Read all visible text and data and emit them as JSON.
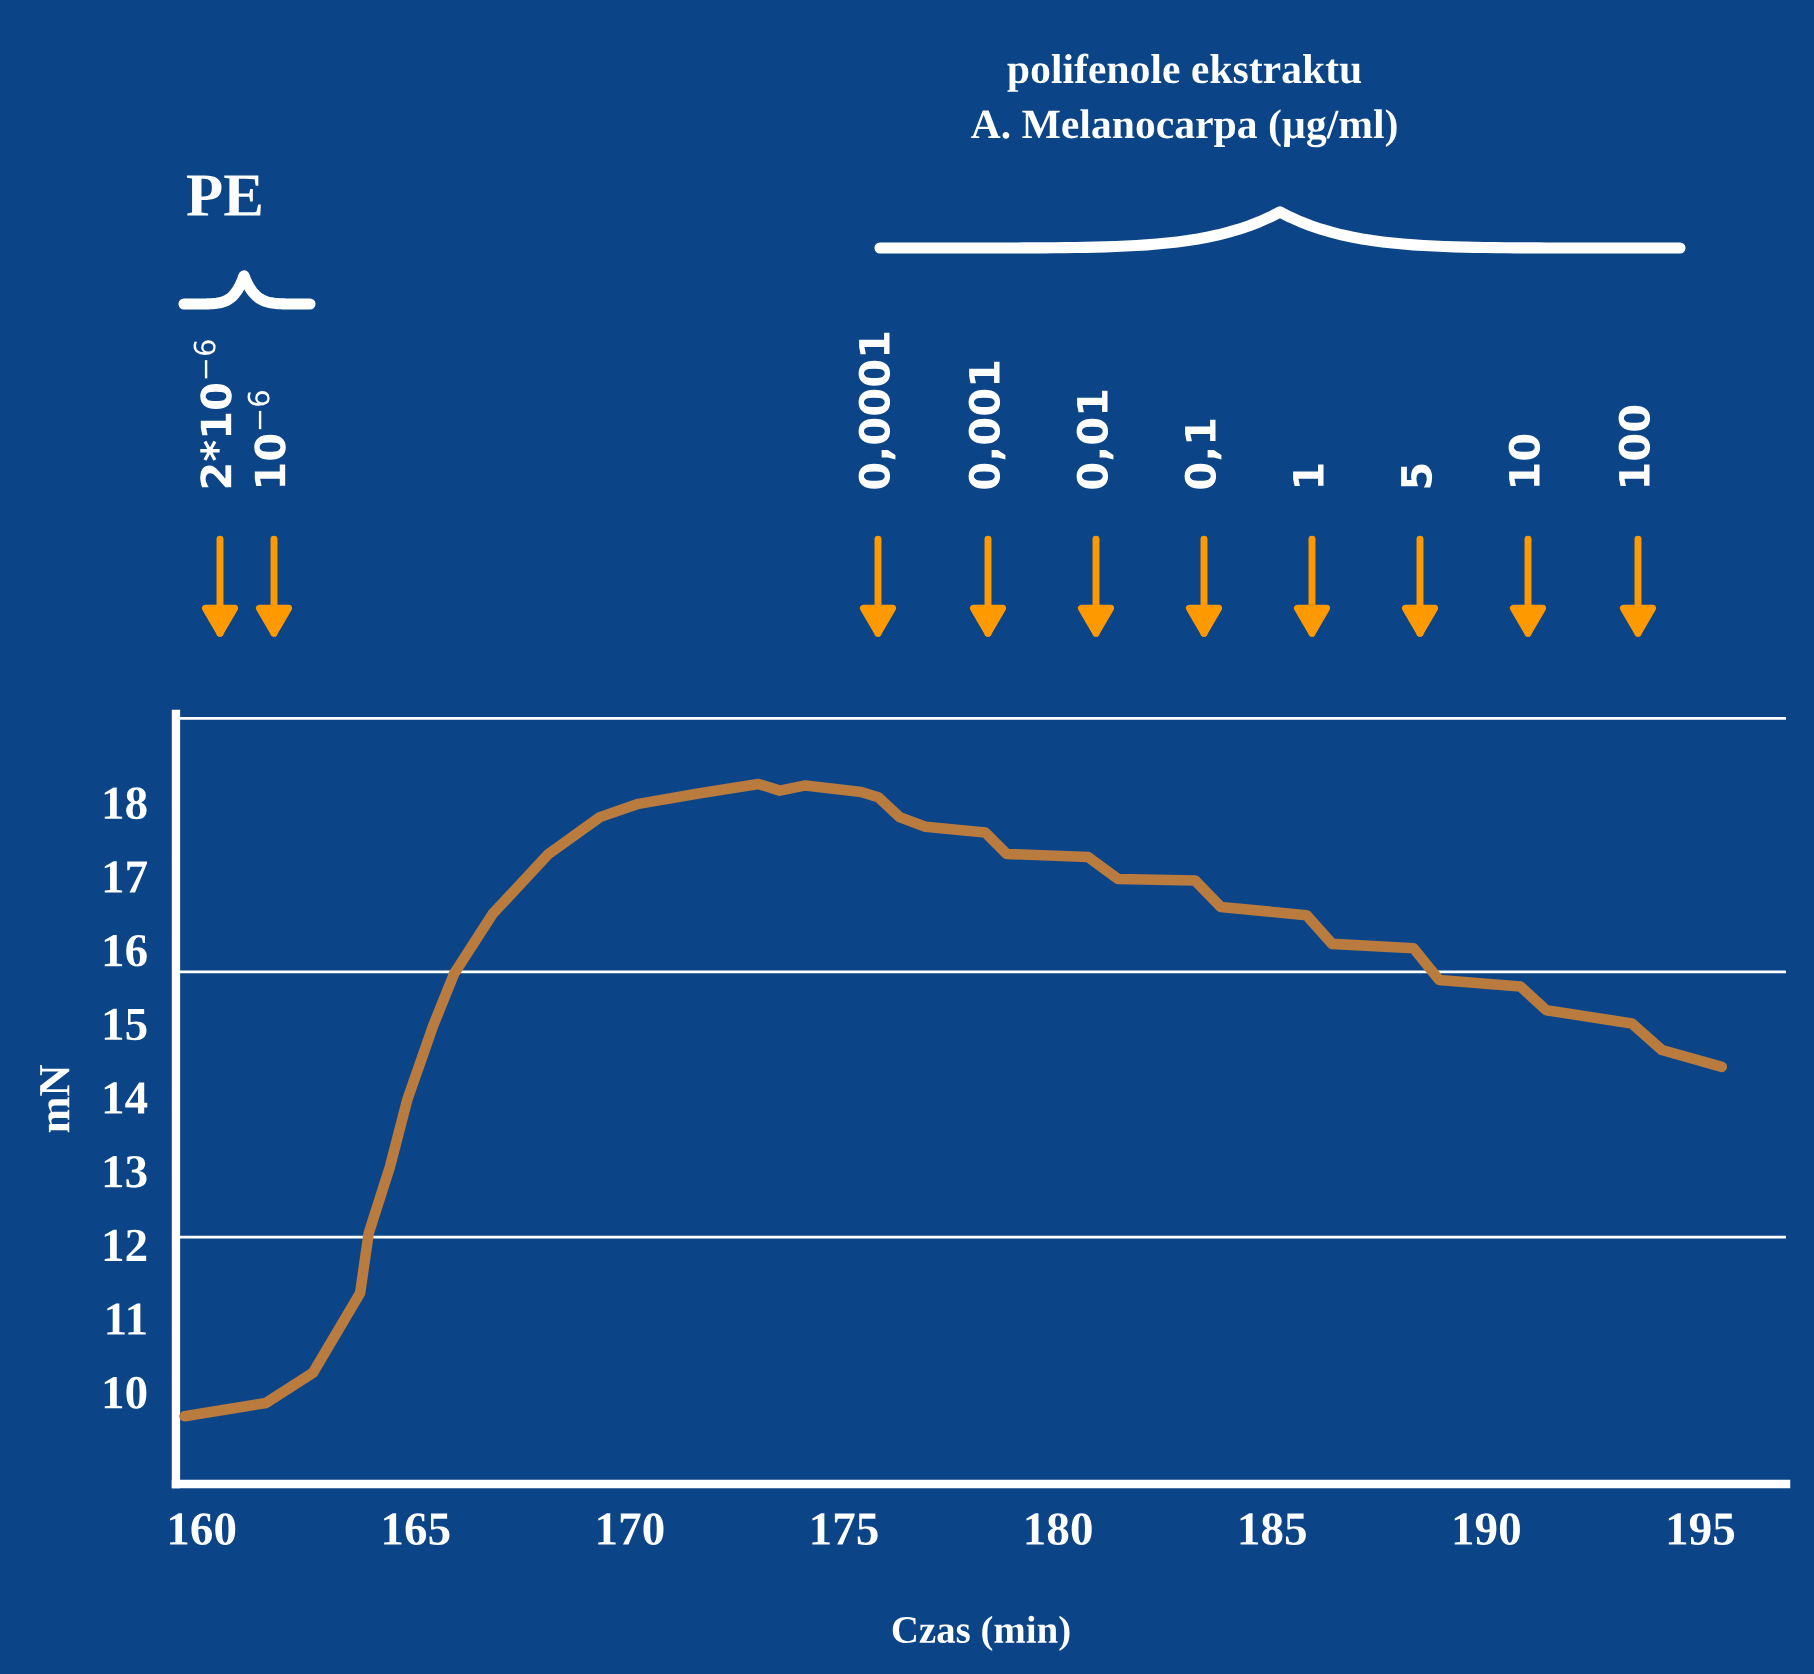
{
  "chart_data": {
    "type": "line",
    "xlabel": "Czas (min)",
    "ylabel": "mN",
    "x": [
      159.6,
      161.5,
      162.6,
      163.7,
      163.9,
      164.4,
      164.8,
      165.4,
      165.9,
      166.8,
      168.1,
      169.3,
      170.2,
      171.6,
      173.0,
      173.5,
      174.1,
      175.4,
      175.8,
      176.3,
      176.9,
      178.3,
      178.8,
      180.7,
      181.4,
      183.2,
      183.8,
      185.8,
      186.4,
      188.3,
      188.9,
      190.8,
      191.4,
      193.4,
      194.1,
      195.5
    ],
    "series": [
      {
        "color": "#b97b3e",
        "values": [
          9.67,
          9.85,
          10.26,
          11.34,
          12.15,
          13.06,
          13.96,
          14.96,
          15.68,
          16.49,
          17.3,
          17.8,
          17.98,
          18.12,
          18.25,
          18.16,
          18.23,
          18.14,
          18.07,
          17.8,
          17.67,
          17.59,
          17.3,
          17.26,
          16.96,
          16.94,
          16.58,
          16.47,
          16.08,
          16.02,
          15.59,
          15.5,
          15.18,
          15.0,
          14.64,
          14.41
        ]
      }
    ],
    "xlim": [
      159.4,
      197
    ],
    "xticks": [
      160,
      165,
      170,
      175,
      180,
      185,
      190,
      195
    ],
    "ylim": [
      8.75,
      19.2
    ],
    "yticks": [
      10,
      11,
      12,
      13,
      14,
      15,
      16,
      17,
      18
    ],
    "grid": false,
    "legend": false,
    "marker": "none",
    "line_style": "solid",
    "ref_lines": [
      {
        "axis": "y",
        "value": 19.14,
        "color": "#ffffff"
      },
      {
        "axis": "y",
        "value": 15.7,
        "color": "#ffffff"
      },
      {
        "axis": "y",
        "value": 12.1,
        "color": "#ffffff"
      }
    ],
    "annotations": [
      "PE",
      "polifenole ekstraktu\nA. Melanocarpa (µg/ml)",
      "2*10$^{−6}$",
      "10$^{−6}$",
      "0,0001",
      "0,001",
      "0,01",
      "0,1",
      "1",
      "5",
      "10",
      "100"
    ]
  }
}
